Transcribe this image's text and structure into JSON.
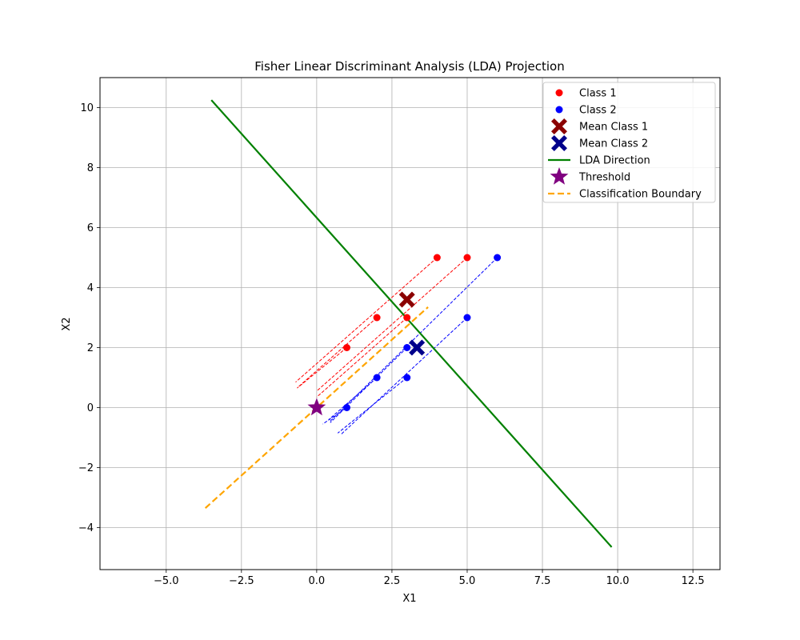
{
  "chart_data": {
    "type": "scatter",
    "title": "Fisher Linear Discriminant Analysis (LDA) Projection",
    "xlabel": "X1",
    "ylabel": "X2",
    "xlim": [
      -7.2,
      13.4
    ],
    "ylim": [
      -5.4,
      11.0
    ],
    "xticks": [
      -5.0,
      -2.5,
      0.0,
      2.5,
      5.0,
      7.5,
      10.0,
      12.5
    ],
    "xtick_labels": [
      "−5.0",
      "−2.5",
      "0.0",
      "2.5",
      "5.0",
      "7.5",
      "10.0",
      "12.5"
    ],
    "yticks": [
      -4,
      -2,
      0,
      2,
      4,
      6,
      8,
      10
    ],
    "ytick_labels": [
      "−4",
      "−2",
      "0",
      "2",
      "4",
      "6",
      "8",
      "10"
    ],
    "grid": true,
    "legend_position": "top-right",
    "series": [
      {
        "name": "Class 1",
        "kind": "points",
        "color": "#ff0000",
        "points": [
          [
            1,
            2
          ],
          [
            2,
            3
          ],
          [
            3,
            3
          ],
          [
            4,
            5
          ],
          [
            5,
            5
          ]
        ]
      },
      {
        "name": "Class 2",
        "kind": "points",
        "color": "#0000ff",
        "points": [
          [
            1,
            0
          ],
          [
            2,
            1
          ],
          [
            3,
            1
          ],
          [
            3,
            2
          ],
          [
            5,
            3
          ],
          [
            6,
            5
          ]
        ]
      },
      {
        "name": "Mean Class 1",
        "kind": "marker-x",
        "color": "#8b0000",
        "points": [
          [
            3.0,
            3.6
          ]
        ]
      },
      {
        "name": "Mean Class 2",
        "kind": "marker-x",
        "color": "#00008b",
        "points": [
          [
            3.33,
            2.0
          ]
        ]
      },
      {
        "name": "LDA Direction",
        "kind": "line",
        "color": "#008000",
        "points": [
          [
            -3.5,
            10.25
          ],
          [
            9.8,
            -4.65
          ]
        ]
      },
      {
        "name": "Threshold",
        "kind": "star",
        "color": "#800080",
        "points": [
          [
            0,
            0
          ]
        ]
      },
      {
        "name": "Classification Boundary",
        "kind": "dashed-line",
        "color": "#ffa500",
        "points": [
          [
            -3.7,
            -3.35
          ],
          [
            3.7,
            3.35
          ]
        ]
      }
    ],
    "projection_lines": [
      {
        "color": "#ff0000",
        "segments": [
          [
            [
              1,
              2
            ],
            [
              -0.65,
              0.65
            ]
          ],
          [
            [
              2,
              3
            ],
            [
              -0.6,
              0.7
            ]
          ],
          [
            [
              3,
              3
            ],
            [
              0.0,
              0.35
            ]
          ],
          [
            [
              4,
              5
            ],
            [
              -0.7,
              0.85
            ]
          ],
          [
            [
              5,
              5
            ],
            [
              0.0,
              0.55
            ]
          ]
        ]
      },
      {
        "color": "#0000ff",
        "segments": [
          [
            [
              1,
              0
            ],
            [
              0.2,
              -0.55
            ]
          ],
          [
            [
              2,
              1
            ],
            [
              0.4,
              -0.4
            ]
          ],
          [
            [
              3,
              1
            ],
            [
              0.7,
              -0.85
            ]
          ],
          [
            [
              3,
              2
            ],
            [
              0.45,
              -0.5
            ]
          ],
          [
            [
              5,
              3
            ],
            [
              0.8,
              -0.9
            ]
          ],
          [
            [
              6,
              5
            ],
            [
              0.45,
              -0.45
            ]
          ]
        ]
      }
    ]
  }
}
